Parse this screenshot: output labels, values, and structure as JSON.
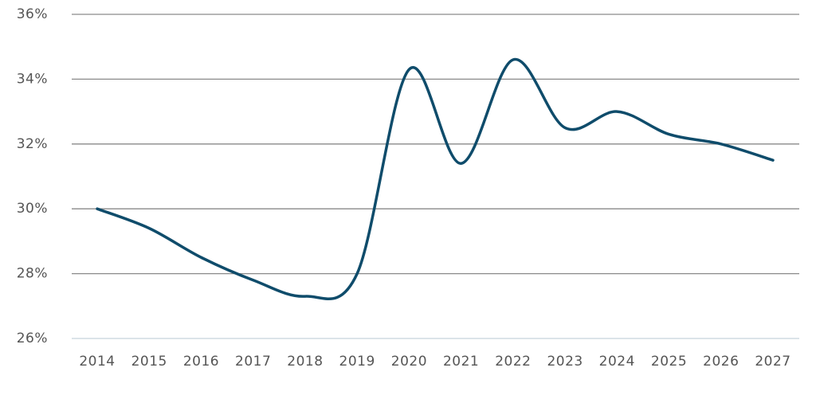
{
  "chart_data": {
    "type": "line",
    "categories": [
      "2014",
      "2015",
      "2016",
      "2017",
      "2018",
      "2019",
      "2020",
      "2021",
      "2022",
      "2023",
      "2024",
      "2025",
      "2026",
      "2027"
    ],
    "values": [
      30.0,
      29.4,
      28.5,
      27.8,
      27.3,
      28.0,
      34.3,
      31.4,
      34.6,
      32.5,
      33.0,
      32.3,
      32.0,
      31.5
    ],
    "color": "#0f4c6b",
    "ylim": [
      26,
      36
    ],
    "yticks": [
      {
        "value": 26,
        "label": "26%"
      },
      {
        "value": 28,
        "label": "28%"
      },
      {
        "value": 30,
        "label": "30%"
      },
      {
        "value": 32,
        "label": "32%"
      },
      {
        "value": 34,
        "label": "34%"
      },
      {
        "value": 36,
        "label": "36%"
      }
    ],
    "grid": true
  }
}
